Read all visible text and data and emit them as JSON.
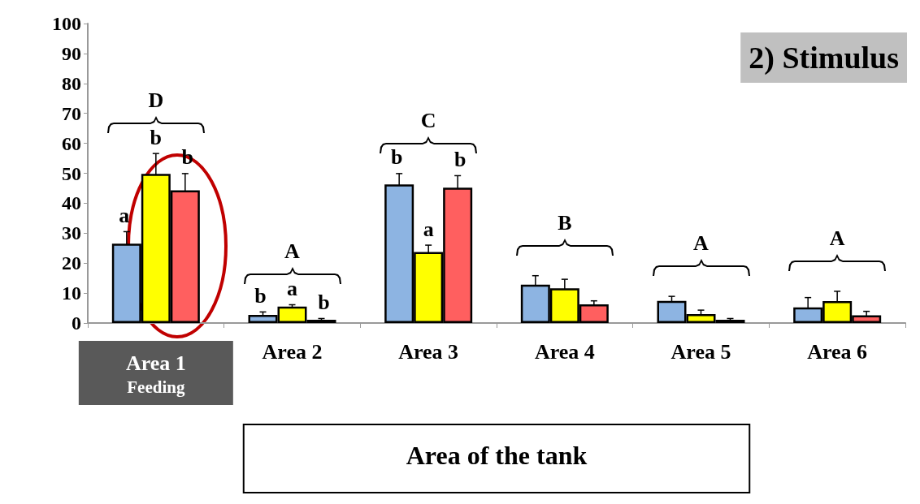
{
  "chart_data": {
    "type": "bar",
    "title": "2) Stimulus",
    "xlabel": "Area of the tank",
    "categories": [
      "Area 1\nFeeding",
      "Area 2",
      "Area 3",
      "Area 4",
      "Area 5",
      "Area 6"
    ],
    "series": [
      {
        "color": "#8db4e2",
        "values": [
          26.5,
          2.7,
          46.3,
          12.8,
          7.4,
          5.2
        ],
        "errors": [
          4,
          1,
          3.6,
          3,
          1.5,
          3.3
        ],
        "value_labels": [
          "a",
          "b",
          "b",
          null,
          null,
          null
        ]
      },
      {
        "color": "#ffff00",
        "values": [
          49.8,
          5.5,
          23.7,
          11.6,
          3,
          7.3
        ],
        "errors": [
          6.8,
          0.6,
          2.3,
          3,
          1.3,
          3.3
        ],
        "value_labels": [
          "b",
          "a",
          "a",
          null,
          null,
          null
        ]
      },
      {
        "color": "#ff5f5f",
        "values": [
          44.3,
          1.1,
          45.2,
          6.2,
          1.1,
          2.6
        ],
        "errors": [
          5.6,
          0.4,
          4,
          1.2,
          0.4,
          1.3
        ],
        "value_labels": [
          "b",
          "b",
          "b",
          null,
          null,
          null
        ]
      }
    ],
    "annotations": [
      "D",
      "A",
      "C",
      "B",
      "A",
      "A"
    ],
    "ylim": [
      0,
      100
    ],
    "yticks": [
      0,
      10,
      20,
      30,
      40,
      50,
      60,
      70,
      80,
      90,
      100
    ],
    "grid": false
  }
}
